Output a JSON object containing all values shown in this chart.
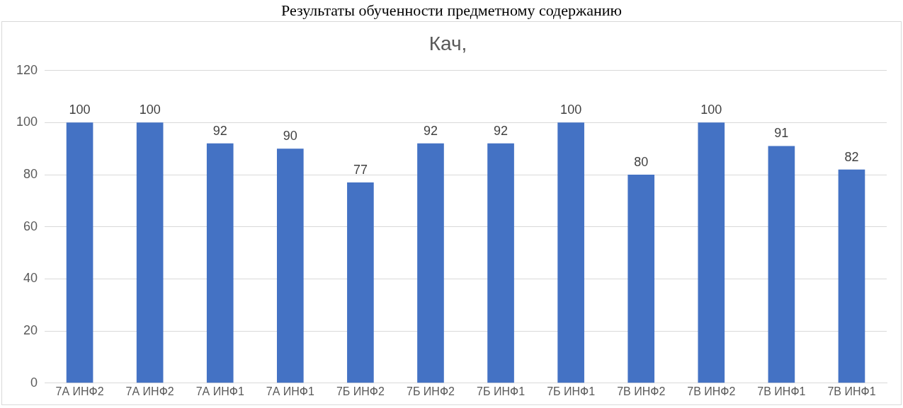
{
  "chart_data": {
    "type": "bar",
    "title": "Результаты обученности предметному содержанию",
    "subtitle": "Кач,",
    "categories": [
      "7А ИНФ2",
      "7А ИНФ2",
      "7А ИНФ1",
      "7А ИНФ1",
      "7Б ИНФ2",
      "7Б ИНФ2",
      "7Б ИНФ1",
      "7Б ИНФ1",
      "7В ИНФ2",
      "7В ИНФ2",
      "7В ИНФ1",
      "7В ИНФ1"
    ],
    "values": [
      100,
      100,
      92,
      90,
      77,
      92,
      92,
      100,
      80,
      100,
      91,
      82
    ],
    "color": "#4472c4",
    "ylim": [
      0,
      120
    ],
    "yticks": [
      0,
      20,
      40,
      60,
      80,
      100,
      120
    ],
    "grid": "y",
    "data_labels": true
  }
}
